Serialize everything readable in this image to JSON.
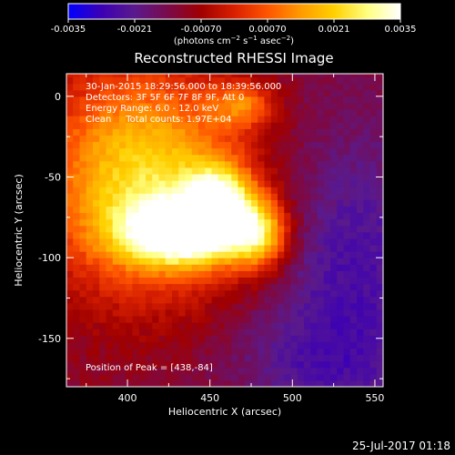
{
  "chart_data": {
    "type": "heatmap",
    "title": "Reconstructed RHESSI Image",
    "xlabel": "Heliocentric X (arcsec)",
    "ylabel": "Heliocentric Y (arcsec)",
    "xlim": [
      363,
      555
    ],
    "ylim": [
      -180,
      14
    ],
    "xticks": [
      400,
      450,
      500,
      550
    ],
    "yticks": [
      0,
      -50,
      -100,
      -150
    ],
    "colorbar": {
      "range": [
        -0.0035,
        0.0035
      ],
      "ticks": [
        "-0.0035",
        "-0.0021",
        "-0.00070",
        "0.00070",
        "0.0021",
        "0.0035"
      ],
      "unit_html": "(photons cm<tspan dy='-4' font-size='7'>−2</tspan><tspan dy='4'> s</tspan><tspan dy='-4' font-size='7'>−1</tspan><tspan dy='4'> asec</tspan><tspan dy='-4' font-size='7'>−2</tspan><tspan dy='4'>)</tspan>",
      "colors": [
        "#0000ff",
        "#3c00b4",
        "#5a1a8c",
        "#7a0a4a",
        "#a00000",
        "#d82000",
        "#ff5500",
        "#ff9a00",
        "#ffd000",
        "#ffff80",
        "#ffffff"
      ]
    },
    "annotations": [
      "30-Jan-2015 18:29:56.000 to 18:39:56.000",
      "Detectors: 3F 5F 6F 7F 8F 9F, Att 0",
      "Energy Range: 6.0 - 12.0 keV",
      "Clean     Total counts: 1.97E+04"
    ],
    "peak_label": "Position of Peak = [438,-84]",
    "peak": [
      438,
      -84
    ]
  },
  "timestamp": "25-Jul-2017 01:18"
}
